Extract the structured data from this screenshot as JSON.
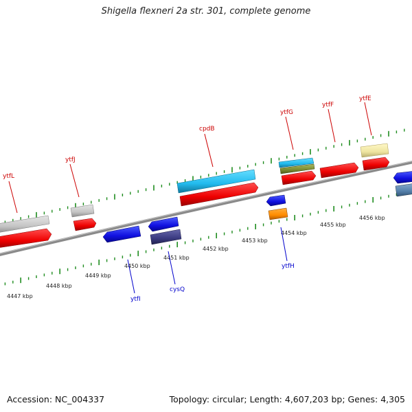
{
  "title": "Shigella flexneri 2a str. 301, complete genome",
  "footer": {
    "accession": "Accession: NC_004337",
    "summary": "Topology: circular; Length: 4,607,203 bp; Genes: 4,305"
  },
  "colors": {
    "backbone": "#8a8a8a",
    "ticks": "#1e8c1e",
    "forward_label": "#cc0000",
    "reverse_label": "#0000cc"
  },
  "kbp_labels": [
    "4447 kbp",
    "4448 kbp",
    "4449 kbp",
    "4450 kbp",
    "4451 kbp",
    "4452 kbp",
    "4453 kbp",
    "4454 kbp",
    "4455 kbp",
    "4456 kbp"
  ],
  "genes": [
    {
      "label": "ytfL",
      "strand": "forward"
    },
    {
      "label": "ytfJ",
      "strand": "forward"
    },
    {
      "label": "cpdB",
      "strand": "forward"
    },
    {
      "label": "ytfG",
      "strand": "forward"
    },
    {
      "label": "ytfF",
      "strand": "forward"
    },
    {
      "label": "ytfE",
      "strand": "forward"
    },
    {
      "label": "ytfI",
      "strand": "reverse"
    },
    {
      "label": "cysQ",
      "strand": "reverse"
    },
    {
      "label": "ytfH",
      "strand": "reverse"
    }
  ]
}
